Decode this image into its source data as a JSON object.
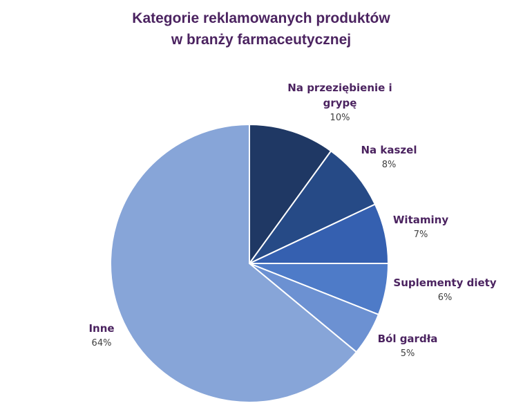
{
  "chart_data": {
    "type": "pie",
    "title": [
      "Kategorie reklamowanych produktów",
      "w branży farmaceutycznej"
    ],
    "slices": [
      {
        "label": [
          "Na przeziębienie i",
          "grypę"
        ],
        "value": 10,
        "value_label": "10%",
        "color": "#1f3864"
      },
      {
        "label": [
          "Na kaszel"
        ],
        "value": 8,
        "value_label": "8%",
        "color": "#264a86"
      },
      {
        "label": [
          "Witaminy"
        ],
        "value": 7,
        "value_label": "7%",
        "color": "#3560b0"
      },
      {
        "label": [
          "Suplementy diety"
        ],
        "value": 6,
        "value_label": "6%",
        "color": "#4e7bc8"
      },
      {
        "label": [
          "Ból gardła"
        ],
        "value": 5,
        "value_label": "5%",
        "color": "#6c91d2"
      },
      {
        "label": [
          "Inne"
        ],
        "value": 64,
        "value_label": "64%",
        "color": "#87a5d8"
      }
    ]
  }
}
